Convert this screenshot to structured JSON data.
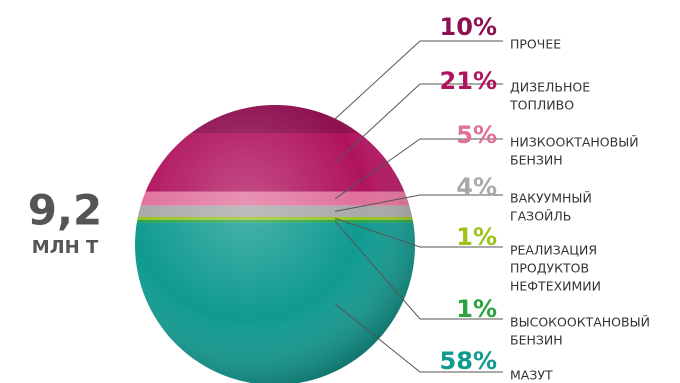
{
  "chart_data": {
    "type": "sphere",
    "total": {
      "value": 9.2,
      "label": "9,2"
    },
    "total_unit": "МЛН Т",
    "categories": [
      [
        "ПРОЧЕЕ"
      ],
      [
        "ДИЗЕЛЬНОЕ",
        "ТОПЛИВО"
      ],
      [
        "НИЗКООКТАНОВЫЙ",
        "БЕНЗИН"
      ],
      [
        "ВАКУУМНЫЙ",
        "ГАЗОЙЛЬ"
      ],
      [
        "РЕАЛИЗАЦИЯ",
        "ПРОДУКТОВ",
        "НЕФТЕХИМИИ"
      ],
      [
        "ВЫСОКООКТАНОВЫЙ",
        "БЕНЗИН"
      ],
      [
        "МАЗУТ"
      ]
    ],
    "values": [
      10,
      21,
      5,
      4,
      1,
      1,
      58
    ],
    "value_labels": [
      "10%",
      "21%",
      "5%",
      "4%",
      "1%",
      "1%",
      "58%"
    ],
    "colors": [
      "#8e1050",
      "#b0135e",
      "#e0709a",
      "#a8a8a8",
      "#9cc31a",
      "#27a33f",
      "#0f9a90"
    ]
  }
}
